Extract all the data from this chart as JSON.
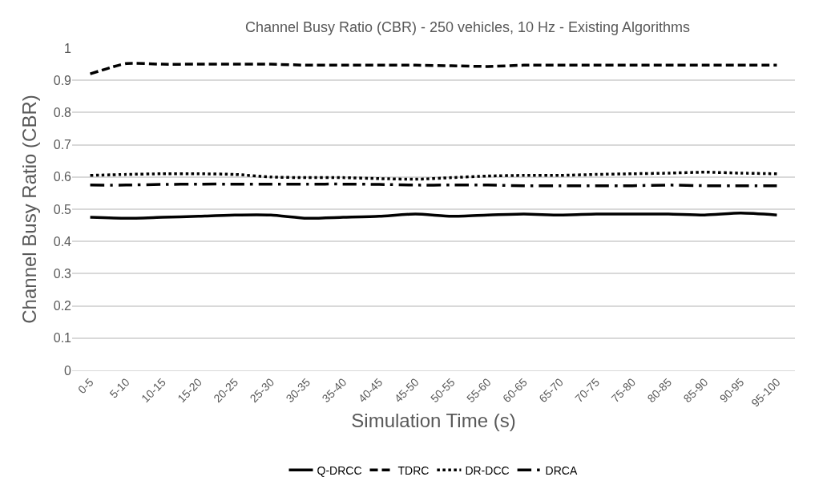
{
  "chart_data": {
    "type": "line",
    "title": "Channel Busy Ratio (CBR) - 250 vehicles, 10 Hz - Existing Algorithms",
    "xlabel": "Simulation Time (s)",
    "ylabel": "Channel Busy Ratio (CBR)",
    "categories": [
      "0-5",
      "5-10",
      "10-15",
      "15-20",
      "20-25",
      "25-30",
      "30-35",
      "35-40",
      "40-45",
      "45-50",
      "50-55",
      "55-60",
      "60-65",
      "65-70",
      "70-75",
      "75-80",
      "80-85",
      "85-90",
      "90-95",
      "95-100"
    ],
    "series": [
      {
        "name": "Q-DRCC",
        "color": "#000000",
        "line_style": "solid",
        "values": [
          0.475,
          0.472,
          0.475,
          0.478,
          0.482,
          0.482,
          0.472,
          0.475,
          0.478,
          0.485,
          0.478,
          0.482,
          0.485,
          0.482,
          0.485,
          0.485,
          0.485,
          0.482,
          0.488,
          0.482
        ]
      },
      {
        "name": "TDRC",
        "color": "#000000",
        "line_style": "dashed",
        "values": [
          0.92,
          0.952,
          0.95,
          0.95,
          0.95,
          0.95,
          0.947,
          0.947,
          0.947,
          0.947,
          0.945,
          0.943,
          0.947,
          0.947,
          0.947,
          0.947,
          0.947,
          0.947,
          0.947,
          0.947
        ]
      },
      {
        "name": "DR-DCC",
        "color": "#000000",
        "line_style": "dotted",
        "values": [
          0.605,
          0.608,
          0.61,
          0.61,
          0.608,
          0.6,
          0.598,
          0.598,
          0.595,
          0.593,
          0.598,
          0.603,
          0.605,
          0.605,
          0.608,
          0.61,
          0.612,
          0.615,
          0.612,
          0.61
        ]
      },
      {
        "name": "DRCA",
        "color": "#000000",
        "line_style": "dashdot",
        "values": [
          0.575,
          0.575,
          0.577,
          0.578,
          0.578,
          0.578,
          0.578,
          0.578,
          0.577,
          0.575,
          0.575,
          0.575,
          0.573,
          0.573,
          0.573,
          0.573,
          0.575,
          0.573,
          0.573,
          0.573
        ]
      }
    ],
    "ylim": [
      0,
      1
    ],
    "yticks": [
      0,
      0.1,
      0.2,
      0.3,
      0.4,
      0.5,
      0.6,
      0.7,
      0.8,
      0.9,
      1
    ],
    "grid": "y",
    "legend": "bottom",
    "marker": "none"
  }
}
